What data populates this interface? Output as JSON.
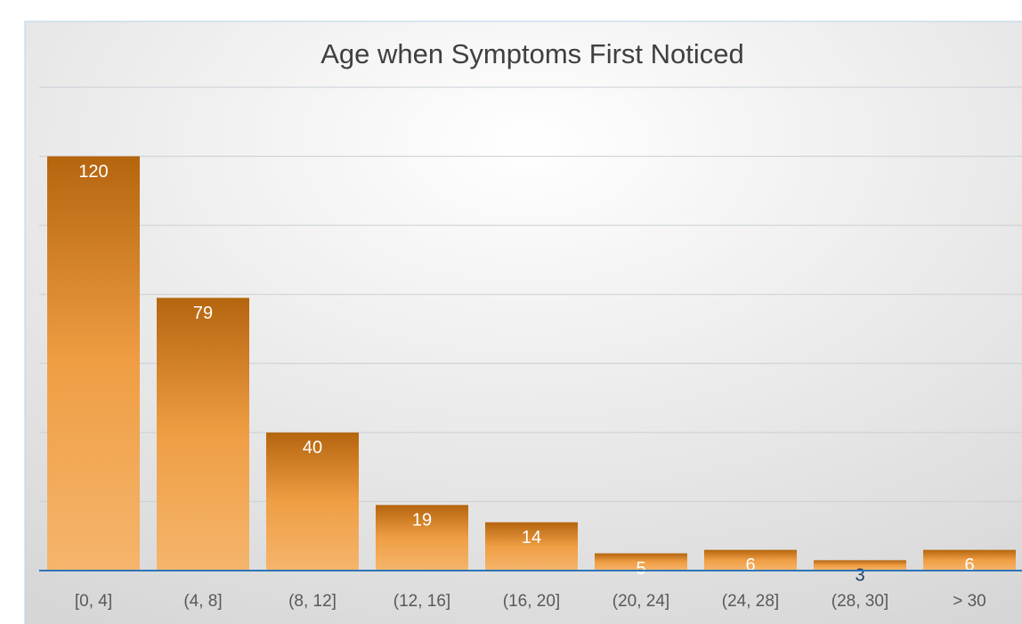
{
  "chart_data": {
    "type": "bar",
    "title": "Age when Symptoms First Noticed",
    "categories": [
      "[0, 4]",
      "(4, 8]",
      "(8, 12]",
      "(12, 16]",
      "(16, 20]",
      "(20, 24]",
      "(24, 28]",
      "(28, 30]",
      "> 30"
    ],
    "values": [
      120,
      79,
      40,
      19,
      14,
      5,
      6,
      3,
      6
    ],
    "color": "#e08a2c",
    "ylim": [
      0,
      140
    ],
    "yticks": [
      0,
      20,
      40,
      60,
      80,
      100,
      120,
      140
    ],
    "grid": true
  }
}
